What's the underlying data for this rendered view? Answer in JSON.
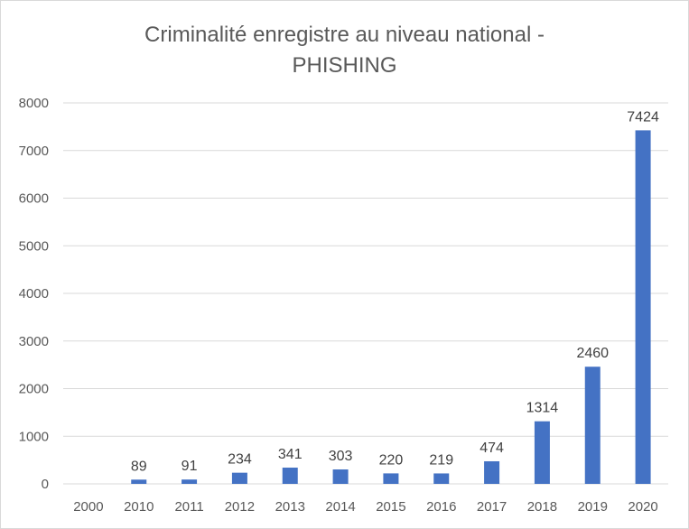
{
  "chart_data": {
    "type": "bar",
    "title_lines": [
      "Criminalité enregistre au niveau national -",
      "PHISHING"
    ],
    "categories": [
      "2000",
      "2010",
      "2011",
      "2012",
      "2013",
      "2014",
      "2015",
      "2016",
      "2017",
      "2018",
      "2019",
      "2020"
    ],
    "values": [
      null,
      89,
      91,
      234,
      341,
      303,
      220,
      219,
      474,
      1314,
      2460,
      7424
    ],
    "data_labels": [
      "",
      "89",
      "91",
      "234",
      "341",
      "303",
      "220",
      "219",
      "474",
      "1314",
      "2460",
      "7424"
    ],
    "ylim": [
      0,
      8000
    ],
    "yticks": [
      "0",
      "1000",
      "2000",
      "3000",
      "4000",
      "5000",
      "6000",
      "7000",
      "8000"
    ],
    "grid": true,
    "legend": "none",
    "xlabel": "",
    "ylabel": "",
    "bar_color": "#4472c4"
  }
}
